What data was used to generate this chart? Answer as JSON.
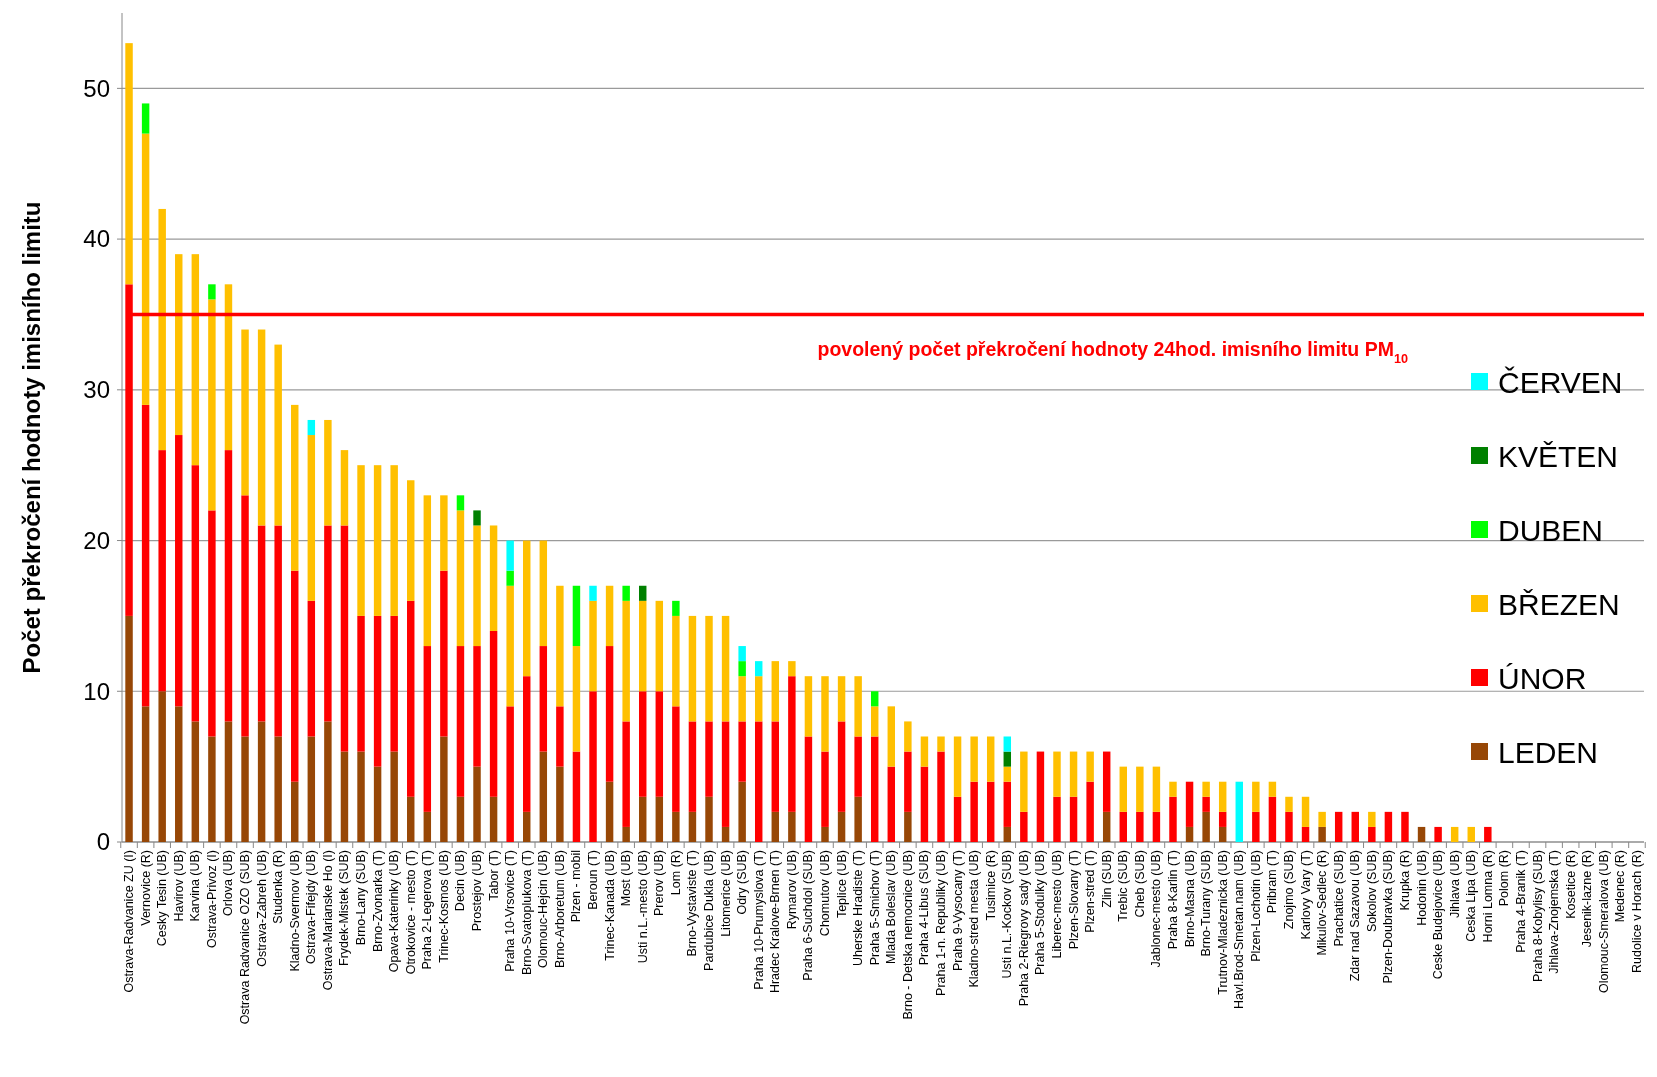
{
  "chart_data": {
    "type": "bar",
    "stacked": true,
    "ylabel": "Počet překročení hodnoty imisního limitu",
    "ylim": [
      0,
      55
    ],
    "yticks": [
      0,
      10,
      20,
      30,
      40,
      50
    ],
    "grid": "y",
    "legend": "right",
    "categories": [
      "Ostrava-Radvanice ZU (I)",
      "Vernovice (R)",
      "Cesky Tesin (UB)",
      "Havirov (UB)",
      "Karvina (UB)",
      "Ostrava-Privoz (I)",
      "Orlova (UB)",
      "Ostrava Radvanice OZO (SUB)",
      "Ostrava-Zabreh (UB)",
      "Studenka (R)",
      "Kladno-Svermov (UB)",
      "Ostrava-Fifejdy (UB)",
      "Ostrava-Marianske Ho (I)",
      "Frydek-Mistek (SUB)",
      "Brno-Lany (SUB)",
      "Brno-Zvonarka (T)",
      "Opava-Katerinky (UB)",
      "Otrokovice - mesto (T)",
      "Praha 2-Legerova (T)",
      "Trinec-Kosmos (UB)",
      "Decin (UB)",
      "Prostejov (UB)",
      "Tabor (T)",
      "Praha 10-Vrsovice (T)",
      "Brno-Svatoplukova (T)",
      "Olomouc-Hejcin (UB)",
      "Brno-Arboretum (UB)",
      "Plzen - mobil",
      "Beroun (T)",
      "Trinec-Kanada (UB)",
      "Most (UB)",
      "Usti n.L.-mesto (UB)",
      "Prerov (UB)",
      "Lom (R)",
      "Brno-Vystaviste (T)",
      "Pardubice Dukla (UB)",
      "Litomerice (UB)",
      "Odry (SUB)",
      "Praha 10-Prumyslova (T)",
      "Hradec Kralove-Brnen (T)",
      "Rymarov (UB)",
      "Praha 6-Suchdol (SUB)",
      "Chomutov (UB)",
      "Teplice (UB)",
      "Uherske Hradiste (T)",
      "Praha 5-Smichov (T)",
      "Mlada Boleslav (UB)",
      "Brno - Detska nemocnice (UB)",
      "Praha 4-Libus (SUB)",
      "Praha 1-n. Republiky (UB)",
      "Praha 9-Vysocany (T)",
      "Kladno-stred mesta (UB)",
      "Tusimice (R)",
      "Usti n.L.-Kockov (SUB)",
      "Praha 2-Riegrovy sady (UB)",
      "Praha 5-Stodulky (UB)",
      "Liberec-mesto (UB)",
      "Plzen-Slovany (T)",
      "Plzen-stred (T)",
      "Zlin (SUB)",
      "Trebic (SUB)",
      "Cheb (SUB)",
      "Jablonec-mesto (UB)",
      "Praha 8-Karlin (T)",
      "Brno-Masna (UB)",
      "Brno-Turany (SUB)",
      "Trutnov-Mladeznicka (UB)",
      "Havl.Brod-Smetan.nam (UB)",
      "Plzen-Lochotin (UB)",
      "Pribram (T)",
      "Znojmo (SUB)",
      "Karlovy Vary (T)",
      "Mikulov-Sedlec (R)",
      "Prachatice (SUB)",
      "Zdar nad Sazavou (UB)",
      "Sokolov (SUB)",
      "Plzen-Doubravka (SUB)",
      "Krupka (R)",
      "Hodonin (UB)",
      "Ceske Budejovice (UB)",
      "Jihlava (UB)",
      "Ceska Lipa (UB)",
      "Horni Lomna (R)",
      "Polom (R)",
      "Praha 4-Branik (T)",
      "Praha 8-Kobylisy (SUB)",
      "Jihlava-Znojemska (T)",
      "Kosetice (R)",
      "Jesenik-lazne (R)",
      "Olomouc-Smeralova (UB)",
      "Medenec (R)",
      "Rudolice v Horach (R)"
    ],
    "series": [
      {
        "name": "LEDEN",
        "color": "#974706",
        "values": [
          15,
          9,
          10,
          9,
          8,
          7,
          8,
          7,
          8,
          7,
          4,
          7,
          8,
          6,
          6,
          5,
          6,
          3,
          2,
          7,
          3,
          5,
          3,
          0,
          2,
          6,
          5,
          0,
          0,
          4,
          1,
          3,
          3,
          2,
          2,
          3,
          1,
          4,
          0,
          2,
          2,
          0,
          1,
          2,
          3,
          0,
          0,
          2,
          0,
          0,
          0,
          0,
          0,
          1,
          0,
          0,
          0,
          0,
          0,
          2,
          0,
          0,
          0,
          0,
          1,
          2,
          1,
          0,
          0,
          0,
          0,
          0,
          1,
          0,
          0,
          0,
          0,
          0,
          1,
          0,
          0,
          0,
          0,
          0,
          0,
          0,
          0,
          0,
          0,
          0,
          0,
          0
        ]
      },
      {
        "name": "ÚNOR",
        "color": "#ff0000",
        "values": [
          22,
          20,
          16,
          18,
          17,
          15,
          18,
          16,
          13,
          14,
          14,
          9,
          13,
          15,
          9,
          10,
          9,
          13,
          11,
          11,
          10,
          8,
          11,
          9,
          9,
          7,
          4,
          6,
          10,
          9,
          7,
          7,
          7,
          7,
          6,
          5,
          7,
          4,
          8,
          6,
          9,
          7,
          5,
          6,
          4,
          7,
          5,
          4,
          5,
          6,
          3,
          4,
          4,
          3,
          2,
          6,
          3,
          3,
          4,
          4,
          2,
          2,
          2,
          3,
          3,
          1,
          1,
          0,
          2,
          3,
          2,
          1,
          0,
          2,
          2,
          1,
          2,
          2,
          0,
          1,
          0,
          0,
          1,
          0,
          0,
          0,
          0,
          0,
          0,
          0,
          0,
          0
        ]
      },
      {
        "name": "BŘEZEN",
        "color": "#ffc000",
        "values": [
          16,
          18,
          16,
          12,
          14,
          14,
          11,
          11,
          13,
          12,
          11,
          11,
          7,
          5,
          10,
          10,
          10,
          8,
          10,
          5,
          9,
          8,
          7,
          8,
          9,
          7,
          8,
          7,
          6,
          4,
          8,
          6,
          6,
          6,
          7,
          7,
          7,
          3,
          3,
          4,
          1,
          4,
          5,
          3,
          4,
          2,
          4,
          2,
          2,
          1,
          4,
          3,
          3,
          1,
          4,
          0,
          3,
          3,
          2,
          0,
          3,
          3,
          3,
          1,
          0,
          1,
          2,
          0,
          2,
          1,
          1,
          2,
          1,
          0,
          0,
          1,
          0,
          0,
          0,
          0,
          1,
          1,
          0,
          0,
          0,
          0,
          0,
          0,
          0,
          0,
          0,
          0
        ]
      },
      {
        "name": "DUBEN",
        "color": "#00ff00",
        "values": [
          0,
          2,
          0,
          0,
          0,
          1,
          0,
          0,
          0,
          0,
          0,
          0,
          0,
          0,
          0,
          0,
          0,
          0,
          0,
          0,
          1,
          0,
          0,
          1,
          0,
          0,
          0,
          4,
          0,
          0,
          1,
          0,
          0,
          1,
          0,
          0,
          0,
          1,
          0,
          0,
          0,
          0,
          0,
          0,
          0,
          1,
          0,
          0,
          0,
          0,
          0,
          0,
          0,
          0,
          0,
          0,
          0,
          0,
          0,
          0,
          0,
          0,
          0,
          0,
          0,
          0,
          0,
          0,
          0,
          0,
          0,
          0,
          0,
          0,
          0,
          0,
          0,
          0,
          0,
          0,
          0,
          0,
          0,
          0,
          0,
          0,
          0,
          0,
          0,
          0,
          0,
          0
        ]
      },
      {
        "name": "KVĚTEN",
        "color": "#008000",
        "values": [
          0,
          0,
          0,
          0,
          0,
          0,
          0,
          0,
          0,
          0,
          0,
          0,
          0,
          0,
          0,
          0,
          0,
          0,
          0,
          0,
          0,
          1,
          0,
          0,
          0,
          0,
          0,
          0,
          0,
          0,
          0,
          1,
          0,
          0,
          0,
          0,
          0,
          0,
          0,
          0,
          0,
          0,
          0,
          0,
          0,
          0,
          0,
          0,
          0,
          0,
          0,
          0,
          0,
          1,
          0,
          0,
          0,
          0,
          0,
          0,
          0,
          0,
          0,
          0,
          0,
          0,
          0,
          0,
          0,
          0,
          0,
          0,
          0,
          0,
          0,
          0,
          0,
          0,
          0,
          0,
          0,
          0,
          0,
          0,
          0,
          0,
          0,
          0,
          0,
          0,
          0,
          0
        ]
      },
      {
        "name": "ČERVEN",
        "color": "#00ffff",
        "values": [
          0,
          0,
          0,
          0,
          0,
          0,
          0,
          0,
          0,
          0,
          0,
          1,
          0,
          0,
          0,
          0,
          0,
          0,
          0,
          0,
          0,
          0,
          0,
          2,
          0,
          0,
          0,
          0,
          1,
          0,
          0,
          0,
          0,
          0,
          0,
          0,
          0,
          1,
          1,
          0,
          0,
          0,
          0,
          0,
          0,
          0,
          0,
          0,
          0,
          0,
          0,
          0,
          0,
          1,
          0,
          0,
          0,
          0,
          0,
          0,
          0,
          0,
          0,
          0,
          0,
          0,
          0,
          4,
          0,
          0,
          0,
          0,
          0,
          0,
          0,
          0,
          0,
          0,
          0,
          0,
          0,
          0,
          0,
          0,
          0,
          0,
          0,
          0,
          0,
          0,
          0,
          0
        ]
      }
    ],
    "ref_lines": [
      {
        "axis": "y",
        "value": 35,
        "label": "povolený počet překročení hodnoty 24hod. imisního limitu PM$_{10}$",
        "color": "#ff0000"
      }
    ]
  }
}
